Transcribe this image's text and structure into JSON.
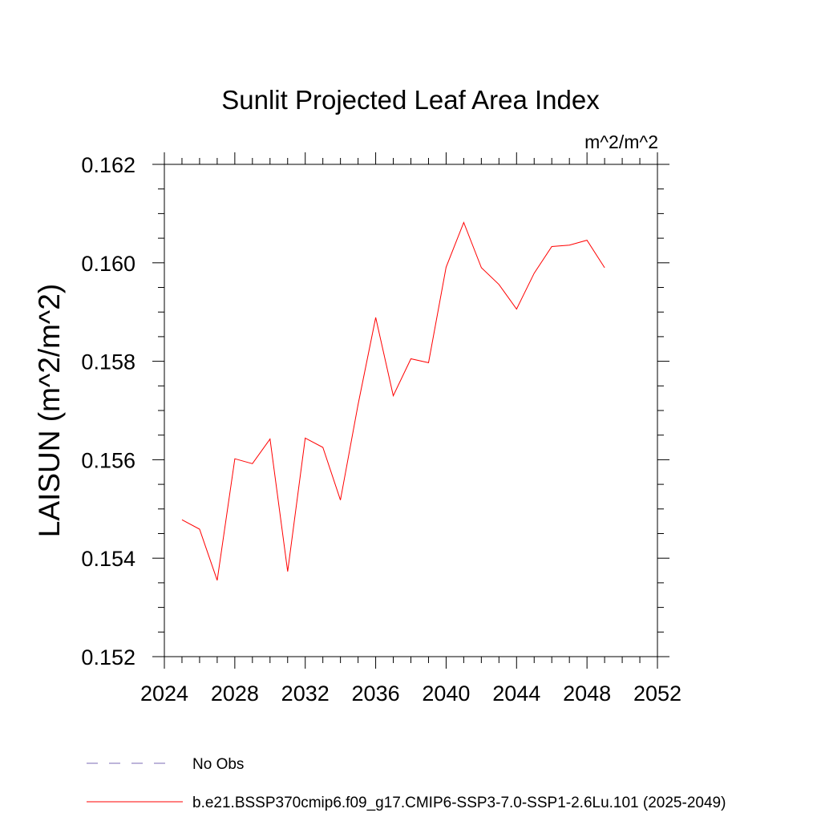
{
  "chart_data": {
    "type": "line",
    "title": "Sunlit Projected Leaf Area Index",
    "units": "m^2/m^2",
    "ylabel": "LAISUN  (m^2/m^2)",
    "xlabel": "",
    "xlim": [
      2024,
      2052
    ],
    "ylim": [
      0.152,
      0.162
    ],
    "xticks": [
      "2024",
      "2028",
      "2032",
      "2036",
      "2040",
      "2044",
      "2048",
      "2052"
    ],
    "yticks": [
      "0.152",
      "0.154",
      "0.156",
      "0.158",
      "0.160",
      "0.162"
    ],
    "grid": false,
    "legend_position": "bottom",
    "legend": [
      {
        "label": "No Obs",
        "color": "#7b6bb5",
        "style": "dashed"
      },
      {
        "label": "b.e21.BSSP370cmip6.f09_g17.CMIP6-SSP3-7.0-SSP1-2.6Lu.101 (2025-2049)",
        "color": "#ff0000",
        "style": "solid"
      }
    ],
    "series": [
      {
        "name": "b.e21.BSSP370cmip6.f09_g17.CMIP6-SSP3-7.0-SSP1-2.6Lu.101 (2025-2049)",
        "color": "#ff0000",
        "x": [
          2025,
          2026,
          2027,
          2028,
          2029,
          2030,
          2031,
          2032,
          2033,
          2034,
          2035,
          2036,
          2037,
          2038,
          2039,
          2040,
          2041,
          2042,
          2043,
          2044,
          2045,
          2046,
          2047,
          2048,
          2049
        ],
        "y": [
          0.15478,
          0.15459,
          0.15355,
          0.15602,
          0.15592,
          0.15642,
          0.15373,
          0.15644,
          0.15625,
          0.15518,
          0.15712,
          0.15889,
          0.1573,
          0.15805,
          0.15797,
          0.15991,
          0.16082,
          0.1599,
          0.15956,
          0.15906,
          0.15979,
          0.16033,
          0.16036,
          0.16046,
          0.1599
        ]
      }
    ]
  }
}
